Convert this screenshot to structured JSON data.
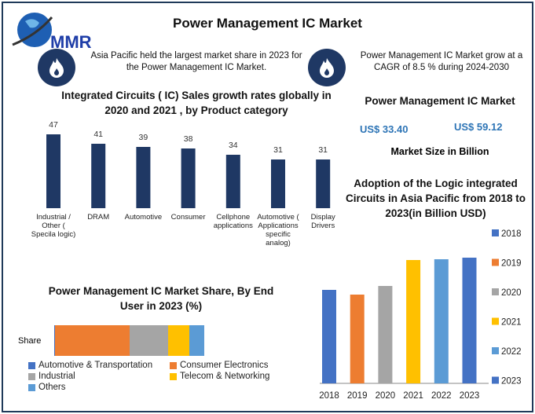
{
  "header": {
    "title": "Power Management IC Market",
    "logo_text": "MMR"
  },
  "notes": [
    {
      "icon": "flame-icon",
      "text": "Asia Pacific held the largest market share in 2023 for the Power Management IC Market."
    },
    {
      "icon": "flame-icon",
      "text": "Power Management IC Market grow at a CAGR of 8.5 % during 2024-2030"
    }
  ],
  "market_size": {
    "title": "Power Management IC Market",
    "value_2023": "US$ 33.40",
    "value_2030": "US$ 59.12",
    "caption": "Market Size in Billion"
  },
  "chart_data": [
    {
      "type": "bar",
      "title": "Integrated Circuits ( IC) Sales growth rates globally in 2020 and 2021 , by Product category",
      "categories": [
        "Industrial / Other ( Specila logic)",
        "DRAM",
        "Automotive",
        "Consumer",
        "Cellphone applications",
        "Automotive ( Applications specific analog)",
        "Display Drivers"
      ],
      "values": [
        47,
        41,
        39,
        38,
        34,
        31,
        31
      ],
      "color": "#1f3864",
      "grid": false
    },
    {
      "type": "bar",
      "stacked": true,
      "orientation": "horizontal",
      "title": "Power Management IC Market Share, By End User in 2023 (%)",
      "categories": [
        "Share"
      ],
      "series": [
        {
          "name": "Automotive & Transportation",
          "values": [
            0.5
          ],
          "color": "#4472c4"
        },
        {
          "name": "Consumer Electronics",
          "values": [
            50
          ],
          "color": "#ed7d31"
        },
        {
          "name": "Industrial",
          "values": [
            26
          ],
          "color": "#a5a5a5"
        },
        {
          "name": "Telecom & Networking",
          "values": [
            14
          ],
          "color": "#ffc000"
        },
        {
          "name": "Others",
          "values": [
            10
          ],
          "color": "#5b9bd5"
        }
      ],
      "legend": "bottom"
    },
    {
      "type": "bar",
      "title": "Adoption of the Logic integrated Circuits in Asia Pacific from 2018 to 2023(in Billion USD)",
      "categories": [
        "2018",
        "2019",
        "2020",
        "2021",
        "2022",
        "2023"
      ],
      "values": [
        119,
        113,
        124,
        157,
        158,
        160
      ],
      "colors": [
        "#4472c4",
        "#ed7d31",
        "#a5a5a5",
        "#ffc000",
        "#5b9bd5",
        "#4472c4"
      ],
      "legend": "right"
    }
  ]
}
